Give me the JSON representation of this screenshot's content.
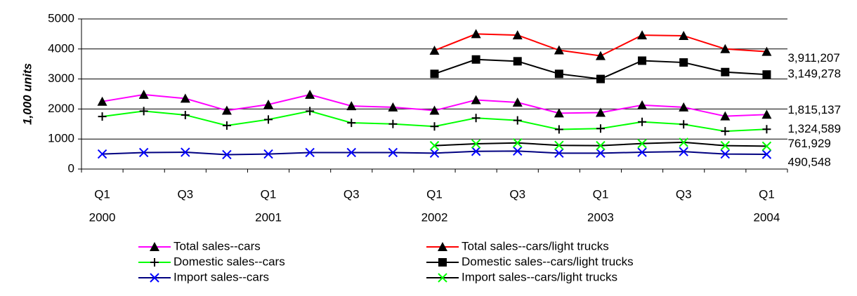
{
  "chart_data": {
    "type": "line",
    "y_label": "1,000 units",
    "categories": [
      "Q1",
      null,
      "Q3",
      null,
      "Q1",
      null,
      "Q3",
      null,
      "Q1",
      null,
      "Q3",
      null,
      "Q1",
      null,
      "Q3",
      null,
      "Q1"
    ],
    "year_labels": [
      "2000",
      null,
      null,
      null,
      "2001",
      null,
      null,
      null,
      "2002",
      null,
      null,
      null,
      "2003",
      null,
      null,
      null,
      "2004"
    ],
    "ylim": [
      0,
      5000
    ],
    "yticks": [
      0,
      1000,
      2000,
      3000,
      4000,
      5000
    ],
    "grid": true,
    "series": [
      {
        "name": "Total sales--cars",
        "color": "#ff00ff",
        "marker": "triangle",
        "marker_color": "#000000",
        "values": [
          2250,
          2480,
          2350,
          1950,
          2150,
          2480,
          2100,
          2060,
          1950,
          2300,
          2220,
          1860,
          1880,
          2130,
          2060,
          1760,
          1815.137
        ],
        "value_labels": [
          null,
          null,
          null,
          null,
          null,
          null,
          null,
          null,
          null,
          null,
          null,
          null,
          null,
          null,
          null,
          null,
          "1,815,137"
        ]
      },
      {
        "name": "Total sales--cars/light trucks",
        "color": "#ff0000",
        "marker": "triangle",
        "marker_color": "#000000",
        "values": [
          null,
          null,
          null,
          null,
          null,
          null,
          null,
          null,
          3950,
          4500,
          4460,
          3960,
          3770,
          4460,
          4440,
          4000,
          3911.207
        ],
        "value_labels": [
          null,
          null,
          null,
          null,
          null,
          null,
          null,
          null,
          null,
          null,
          null,
          null,
          null,
          null,
          null,
          null,
          "3,911,207"
        ]
      },
      {
        "name": "Domestic sales--cars",
        "color": "#00ff00",
        "marker": "plus",
        "marker_color": "#000000",
        "values": [
          1750,
          1930,
          1800,
          1450,
          1650,
          1930,
          1540,
          1500,
          1420,
          1700,
          1620,
          1320,
          1350,
          1570,
          1490,
          1260,
          1324.589
        ],
        "value_labels": [
          null,
          null,
          null,
          null,
          null,
          null,
          null,
          null,
          null,
          null,
          null,
          null,
          null,
          null,
          null,
          null,
          "1,324,589"
        ]
      },
      {
        "name": "Domestic sales--cars/light trucks",
        "color": "#000000",
        "marker": "square",
        "marker_color": "#000000",
        "values": [
          null,
          null,
          null,
          null,
          null,
          null,
          null,
          null,
          3170,
          3650,
          3590,
          3170,
          3000,
          3610,
          3550,
          3230,
          3149.278
        ],
        "value_labels": [
          null,
          null,
          null,
          null,
          null,
          null,
          null,
          null,
          null,
          null,
          null,
          null,
          null,
          null,
          null,
          null,
          "3,149,278"
        ]
      },
      {
        "name": "Import sales--cars",
        "color": "#000080",
        "marker": "x",
        "marker_color": "#0000ff",
        "values": [
          500,
          550,
          560,
          480,
          500,
          550,
          550,
          550,
          530,
          590,
          600,
          530,
          530,
          560,
          580,
          500,
          490.548
        ],
        "value_labels": [
          null,
          null,
          null,
          null,
          null,
          null,
          null,
          null,
          null,
          null,
          null,
          null,
          null,
          null,
          null,
          null,
          "490,548"
        ]
      },
      {
        "name": "Import sales--cars/light trucks",
        "color": "#000000",
        "marker": "x",
        "marker_color": "#00ff00",
        "values": [
          null,
          null,
          null,
          null,
          null,
          null,
          null,
          null,
          780,
          840,
          870,
          790,
          780,
          850,
          890,
          780,
          761.929
        ],
        "value_labels": [
          null,
          null,
          null,
          null,
          null,
          null,
          null,
          null,
          null,
          null,
          null,
          null,
          null,
          null,
          null,
          null,
          "761,929"
        ]
      }
    ]
  }
}
